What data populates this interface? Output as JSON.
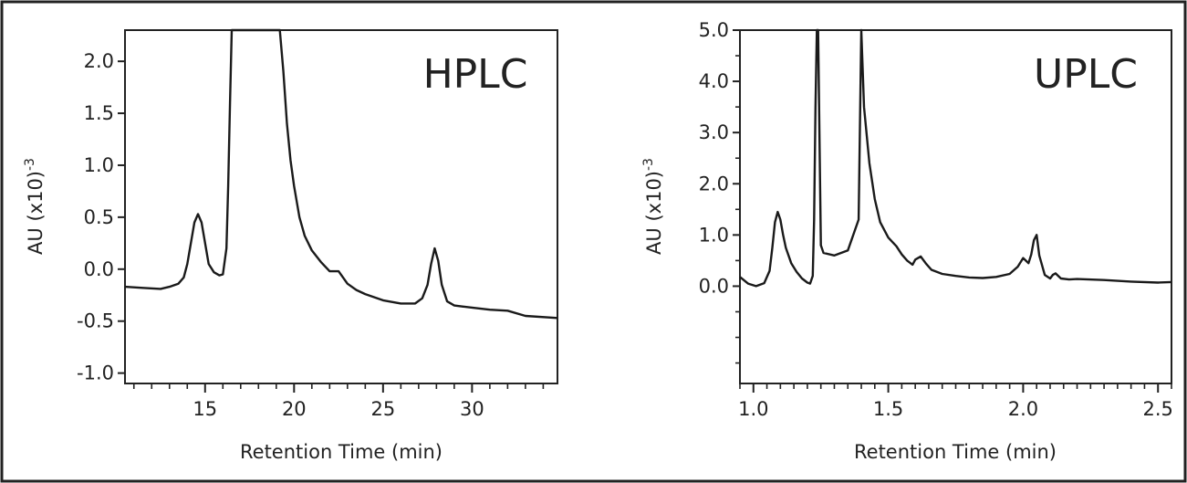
{
  "chart_data": [
    {
      "type": "line",
      "title": "HPLC",
      "xlabel": "Retention Time  (min)",
      "ylabel": "AU (x10)",
      "ylabel_superscript": "-3",
      "xlim": [
        10.5,
        34.8
      ],
      "ylim": [
        -1.1,
        2.3
      ],
      "xticks": [
        15,
        20,
        25,
        30
      ],
      "xtick_labels": [
        "15",
        "20",
        "25",
        "30"
      ],
      "xminor_step": 1,
      "yticks": [
        2.0,
        1.5,
        1.0,
        0.5,
        0.0,
        -0.5,
        -1.0
      ],
      "ytick_labels": [
        "2.0",
        "1.5",
        "1.0",
        "0.5",
        "0.0",
        "-0.5",
        "-1.0"
      ],
      "grid": false,
      "series": [
        {
          "x": [
            10.5,
            11.5,
            12.5,
            13.0,
            13.5,
            13.8,
            14.0,
            14.2,
            14.4,
            14.6,
            14.8,
            15.0,
            15.2,
            15.5,
            15.8,
            16.0,
            16.2,
            16.3,
            16.4,
            16.5,
            16.6,
            19.2,
            19.4,
            19.6,
            19.8,
            20.0,
            20.3,
            20.6,
            21.0,
            21.5,
            22.0,
            22.5,
            23.0,
            23.5,
            24.0,
            25.0,
            26.0,
            26.8,
            27.2,
            27.5,
            27.7,
            27.9,
            28.1,
            28.3,
            28.6,
            29.0,
            29.5,
            30.0,
            31.0,
            32.0,
            33.0,
            34.8
          ],
          "y": [
            -0.17,
            -0.18,
            -0.19,
            -0.17,
            -0.14,
            -0.08,
            0.05,
            0.25,
            0.45,
            0.53,
            0.45,
            0.25,
            0.05,
            -0.03,
            -0.06,
            -0.05,
            0.2,
            0.8,
            1.6,
            2.3,
            2.3,
            2.3,
            1.9,
            1.4,
            1.05,
            0.8,
            0.5,
            0.32,
            0.18,
            0.07,
            -0.02,
            -0.02,
            -0.14,
            -0.2,
            -0.24,
            -0.3,
            -0.33,
            -0.33,
            -0.28,
            -0.15,
            0.05,
            0.2,
            0.08,
            -0.15,
            -0.31,
            -0.35,
            -0.36,
            -0.37,
            -0.39,
            -0.4,
            -0.45,
            -0.47
          ]
        }
      ]
    },
    {
      "type": "line",
      "title": "UPLC",
      "xlabel": "Retention Time  (min)",
      "ylabel": "AU (x10)",
      "ylabel_superscript": "-3",
      "xlim": [
        0.95,
        2.55
      ],
      "ylim": [
        -1.9,
        5.0
      ],
      "xticks": [
        1.0,
        1.5,
        2.0,
        2.5
      ],
      "xtick_labels": [
        "1.0",
        "1.5",
        "2.0",
        "2.5"
      ],
      "xminor_step": 0.05,
      "yticks": [
        5.0,
        4.0,
        3.0,
        2.0,
        1.0,
        0.0
      ],
      "ytick_labels": [
        "5.0",
        "4.0",
        "3.0",
        "2.0",
        "1.0",
        "0.0"
      ],
      "yminor_step": 0.5,
      "grid": false,
      "series": [
        {
          "x": [
            0.95,
            0.98,
            1.01,
            1.04,
            1.06,
            1.07,
            1.08,
            1.09,
            1.1,
            1.11,
            1.12,
            1.14,
            1.16,
            1.18,
            1.2,
            1.21,
            1.22,
            1.225,
            1.23,
            1.235,
            1.24,
            1.25,
            1.26,
            1.3,
            1.35,
            1.39,
            1.4,
            1.41,
            1.43,
            1.45,
            1.47,
            1.5,
            1.53,
            1.55,
            1.57,
            1.59,
            1.6,
            1.62,
            1.64,
            1.66,
            1.7,
            1.75,
            1.8,
            1.85,
            1.9,
            1.95,
            1.98,
            2.0,
            2.02,
            2.03,
            2.04,
            2.05,
            2.06,
            2.08,
            2.1,
            2.11,
            2.12,
            2.14,
            2.17,
            2.2,
            2.3,
            2.4,
            2.5,
            2.55
          ],
          "y": [
            0.18,
            0.05,
            0.0,
            0.06,
            0.3,
            0.75,
            1.25,
            1.45,
            1.3,
            1.0,
            0.75,
            0.45,
            0.28,
            0.15,
            0.07,
            0.05,
            0.2,
            1.3,
            3.5,
            5.0,
            5.0,
            0.8,
            0.65,
            0.6,
            0.7,
            1.3,
            5.0,
            3.5,
            2.4,
            1.7,
            1.25,
            0.95,
            0.78,
            0.62,
            0.5,
            0.42,
            0.52,
            0.58,
            0.44,
            0.32,
            0.24,
            0.2,
            0.17,
            0.16,
            0.18,
            0.24,
            0.38,
            0.55,
            0.45,
            0.62,
            0.9,
            1.0,
            0.6,
            0.22,
            0.15,
            0.22,
            0.25,
            0.15,
            0.13,
            0.14,
            0.12,
            0.09,
            0.07,
            0.08
          ]
        }
      ]
    }
  ]
}
